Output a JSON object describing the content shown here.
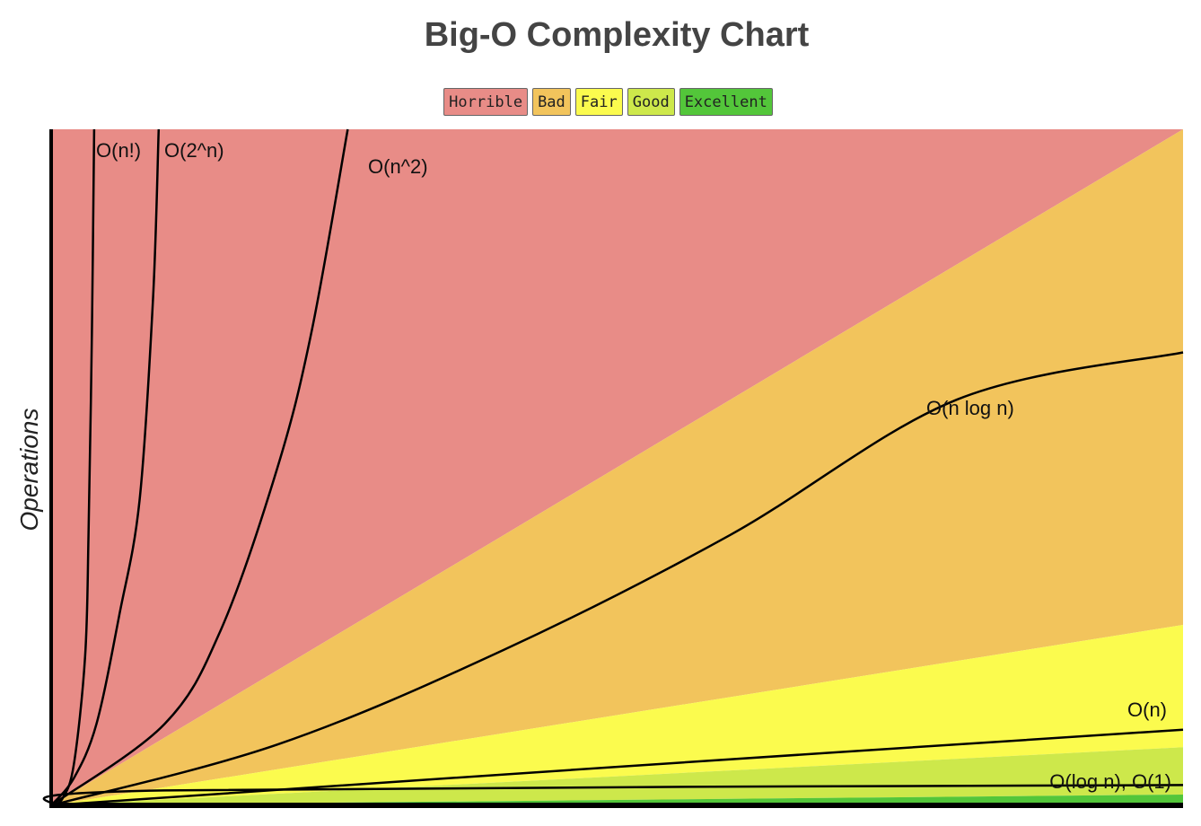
{
  "chart_data": {
    "type": "area",
    "title": "Big-O Complexity Chart",
    "xlabel": "",
    "ylabel": "Operations",
    "xlim": [
      0,
      100
    ],
    "ylim": [
      0,
      100
    ],
    "grid": false,
    "legend_position": "top-center",
    "legend": [
      {
        "label": "Horrible",
        "color": "#e88c87"
      },
      {
        "label": "Bad",
        "color": "#f2c45c"
      },
      {
        "label": "Fair",
        "color": "#fbfb4e"
      },
      {
        "label": "Good",
        "color": "#cde84b"
      },
      {
        "label": "Excellent",
        "color": "#53c63a"
      }
    ],
    "regions": [
      {
        "label": "Horrible",
        "color": "#e88c87",
        "upper_end_value": 100
      },
      {
        "label": "Bad",
        "color": "#f2c45c",
        "upper_end_value": 100
      },
      {
        "label": "Fair",
        "color": "#fbfb4e",
        "upper_end_value": 26.7
      },
      {
        "label": "Good",
        "color": "#cde84b",
        "upper_end_value": 8.6
      },
      {
        "label": "Excellent",
        "color": "#53c63a",
        "upper_end_value": 1.6
      }
    ],
    "series": [
      {
        "name": "O(n!)",
        "x": [
          0,
          1,
          2,
          3,
          3.3,
          3.6,
          3.8
        ],
        "y": [
          0,
          1,
          6,
          22,
          40,
          70,
          100
        ]
      },
      {
        "name": "O(2^n)",
        "x": [
          0,
          2,
          4,
          6,
          7.8,
          9,
          9.5
        ],
        "y": [
          0,
          4,
          12,
          28,
          45,
          75,
          100
        ]
      },
      {
        "name": "O(n^2)",
        "x": [
          0,
          10,
          15,
          20,
          23,
          26.2
        ],
        "y": [
          0,
          12,
          26,
          50,
          70,
          100
        ]
      },
      {
        "name": "O(n log n)",
        "x": [
          0,
          20,
          40,
          60,
          80,
          100
        ],
        "y": [
          0,
          9,
          23,
          40,
          60,
          67
        ]
      },
      {
        "name": "O(n)",
        "x": [
          0,
          50,
          100
        ],
        "y": [
          0,
          5.7,
          11.2
        ]
      },
      {
        "name": "O(log n), O(1)",
        "x": [
          0,
          10,
          100
        ],
        "y": [
          0,
          2.2,
          3.0
        ]
      }
    ]
  }
}
